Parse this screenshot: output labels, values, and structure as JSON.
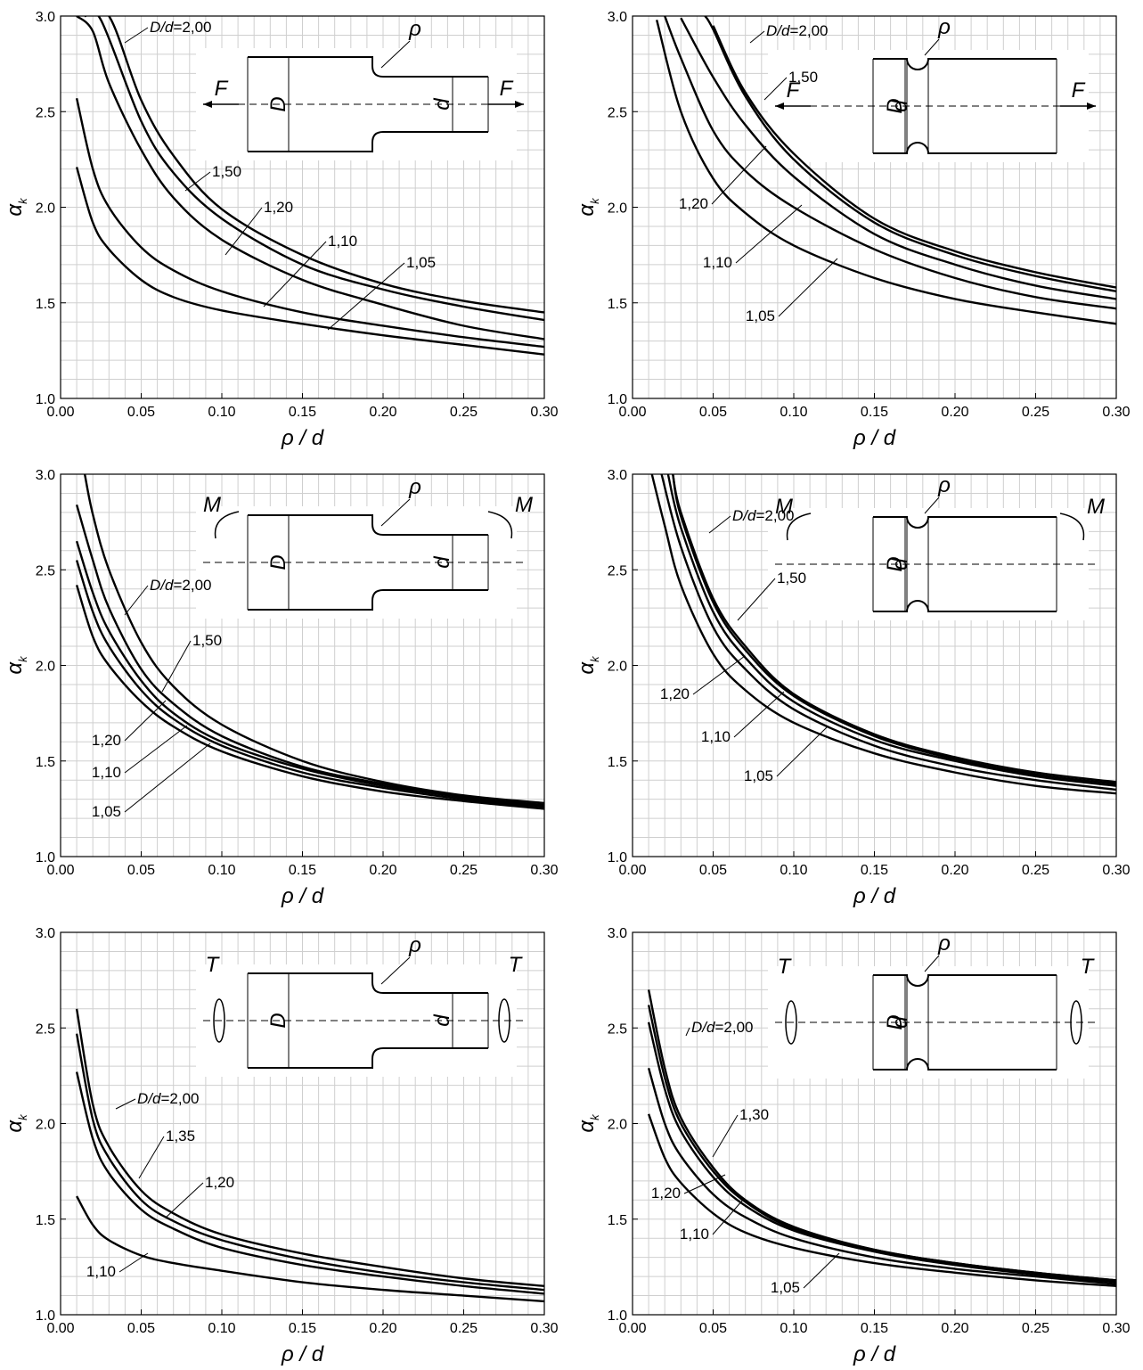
{
  "chart_data": [
    {
      "type": "line",
      "loading": "tension",
      "geometry": "shoulder-fillet",
      "xlabel": "ρ / d",
      "ylabel": "α",
      "ylabel_subscript": "k",
      "xlim": [
        0,
        0.3
      ],
      "ylim": [
        1.0,
        3.0
      ],
      "xticks": [
        "0.00",
        "0.05",
        "0.10",
        "0.15",
        "0.20",
        "0.25",
        "0.30"
      ],
      "yticks": [
        "1.0",
        "1.5",
        "2.0",
        "2.5",
        "3.0"
      ],
      "grid": true,
      "sketch_labels": {
        "force": "F",
        "big_d": "D",
        "small_d": "d",
        "radius": "ρ"
      },
      "series": [
        {
          "name": "D/d=2,00",
          "x": [
            0.015,
            0.03,
            0.05,
            0.07,
            0.1,
            0.15,
            0.2,
            0.25,
            0.3
          ],
          "values": [
            3.0,
            3.0,
            2.56,
            2.27,
            1.99,
            1.75,
            1.6,
            1.51,
            1.45
          ]
        },
        {
          "name": "1,50",
          "x": [
            0.015,
            0.025,
            0.05,
            0.07,
            0.1,
            0.15,
            0.2,
            0.25,
            0.3
          ],
          "values": [
            3.0,
            2.98,
            2.45,
            2.18,
            1.94,
            1.7,
            1.57,
            1.48,
            1.41
          ]
        },
        {
          "name": "1,20",
          "x": [
            0.01,
            0.02,
            0.03,
            0.05,
            0.07,
            0.1,
            0.15,
            0.2,
            0.25,
            0.3
          ],
          "values": [
            3.0,
            2.92,
            2.65,
            2.3,
            2.05,
            1.83,
            1.62,
            1.49,
            1.38,
            1.31
          ]
        },
        {
          "name": "1,10",
          "x": [
            0.01,
            0.02,
            0.03,
            0.05,
            0.07,
            0.1,
            0.15,
            0.2,
            0.25,
            0.3
          ],
          "values": [
            2.57,
            2.2,
            2.0,
            1.79,
            1.67,
            1.56,
            1.45,
            1.38,
            1.32,
            1.27
          ]
        },
        {
          "name": "1,05",
          "x": [
            0.01,
            0.02,
            0.03,
            0.05,
            0.07,
            0.1,
            0.15,
            0.2,
            0.25,
            0.3
          ],
          "values": [
            2.21,
            1.92,
            1.78,
            1.62,
            1.53,
            1.46,
            1.39,
            1.33,
            1.28,
            1.23
          ]
        }
      ]
    },
    {
      "type": "line",
      "loading": "tension",
      "geometry": "groove",
      "xlabel": "ρ / d",
      "ylabel": "α",
      "ylabel_subscript": "k",
      "xlim": [
        0,
        0.3
      ],
      "ylim": [
        1.0,
        3.0
      ],
      "xticks": [
        "0.00",
        "0.05",
        "0.10",
        "0.15",
        "0.20",
        "0.25",
        "0.30"
      ],
      "yticks": [
        "1.0",
        "1.5",
        "2.0",
        "2.5",
        "3.0"
      ],
      "grid": true,
      "sketch_labels": {
        "force": "F",
        "big_d": "D",
        "small_d": "d",
        "radius": "ρ"
      },
      "series": [
        {
          "name": "D/d=2,00",
          "x": [
            0.05,
            0.07,
            0.1,
            0.15,
            0.2,
            0.25,
            0.3
          ],
          "values": [
            2.95,
            2.6,
            2.28,
            1.94,
            1.77,
            1.66,
            1.58
          ]
        },
        {
          "name": "1,50",
          "x": [
            0.045,
            0.05,
            0.07,
            0.1,
            0.15,
            0.2,
            0.25,
            0.3
          ],
          "values": [
            3.0,
            2.93,
            2.58,
            2.25,
            1.92,
            1.75,
            1.64,
            1.56
          ]
        },
        {
          "name": "1,20",
          "x": [
            0.03,
            0.05,
            0.07,
            0.1,
            0.15,
            0.2,
            0.25,
            0.3
          ],
          "values": [
            2.99,
            2.68,
            2.43,
            2.16,
            1.86,
            1.7,
            1.59,
            1.52
          ]
        },
        {
          "name": "1,10",
          "x": [
            0.02,
            0.03,
            0.05,
            0.07,
            0.1,
            0.15,
            0.2,
            0.25,
            0.3
          ],
          "values": [
            3.0,
            2.78,
            2.4,
            2.19,
            2.0,
            1.78,
            1.63,
            1.53,
            1.47
          ]
        },
        {
          "name": "1,05",
          "x": [
            0.015,
            0.03,
            0.05,
            0.07,
            0.1,
            0.15,
            0.2,
            0.25,
            0.3
          ],
          "values": [
            2.98,
            2.5,
            2.15,
            1.97,
            1.8,
            1.63,
            1.52,
            1.45,
            1.39
          ]
        }
      ]
    },
    {
      "type": "line",
      "loading": "bending",
      "geometry": "shoulder-fillet",
      "xlabel": "ρ / d",
      "ylabel": "α",
      "ylabel_subscript": "k",
      "xlim": [
        0,
        0.3
      ],
      "ylim": [
        1.0,
        3.0
      ],
      "xticks": [
        "0.00",
        "0.05",
        "0.10",
        "0.15",
        "0.20",
        "0.25",
        "0.30"
      ],
      "yticks": [
        "1.0",
        "1.5",
        "2.0",
        "2.5",
        "3.0"
      ],
      "grid": true,
      "sketch_labels": {
        "force": "M",
        "big_d": "D",
        "small_d": "d",
        "radius": "ρ"
      },
      "series": [
        {
          "name": "D/d=2,00",
          "x": [
            0.015,
            0.02,
            0.03,
            0.05,
            0.07,
            0.1,
            0.15,
            0.2,
            0.25,
            0.3
          ],
          "values": [
            3.0,
            2.79,
            2.5,
            2.12,
            1.89,
            1.69,
            1.5,
            1.39,
            1.32,
            1.28
          ]
        },
        {
          "name": "1,50",
          "x": [
            0.01,
            0.02,
            0.03,
            0.05,
            0.07,
            0.1,
            0.15,
            0.2,
            0.25,
            0.3
          ],
          "values": [
            2.84,
            2.55,
            2.3,
            1.98,
            1.8,
            1.63,
            1.47,
            1.38,
            1.31,
            1.27
          ]
        },
        {
          "name": "1,20",
          "x": [
            0.01,
            0.02,
            0.03,
            0.05,
            0.07,
            0.1,
            0.15,
            0.2,
            0.25,
            0.3
          ],
          "values": [
            2.65,
            2.38,
            2.18,
            1.92,
            1.75,
            1.6,
            1.46,
            1.37,
            1.31,
            1.26
          ]
        },
        {
          "name": "1,10",
          "x": [
            0.01,
            0.02,
            0.03,
            0.05,
            0.07,
            0.1,
            0.15,
            0.2,
            0.25,
            0.3
          ],
          "values": [
            2.55,
            2.28,
            2.1,
            1.87,
            1.72,
            1.58,
            1.44,
            1.36,
            1.3,
            1.26
          ]
        },
        {
          "name": "1,05",
          "x": [
            0.01,
            0.02,
            0.03,
            0.05,
            0.07,
            0.1,
            0.15,
            0.2,
            0.25,
            0.3
          ],
          "values": [
            2.42,
            2.15,
            2.0,
            1.81,
            1.68,
            1.55,
            1.42,
            1.34,
            1.29,
            1.25
          ]
        }
      ]
    },
    {
      "type": "line",
      "loading": "bending",
      "geometry": "groove",
      "xlabel": "ρ / d",
      "ylabel": "α",
      "ylabel_subscript": "k",
      "xlim": [
        0,
        0.3
      ],
      "ylim": [
        1.0,
        3.0
      ],
      "xticks": [
        "0.00",
        "0.05",
        "0.10",
        "0.15",
        "0.20",
        "0.25",
        "0.30"
      ],
      "yticks": [
        "1.0",
        "1.5",
        "2.0",
        "2.5",
        "3.0"
      ],
      "grid": true,
      "sketch_labels": {
        "force": "M",
        "big_d": "D",
        "small_d": "d",
        "radius": "ρ"
      },
      "series": [
        {
          "name": "D/d=2,00",
          "x": [
            0.025,
            0.03,
            0.05,
            0.07,
            0.1,
            0.15,
            0.2,
            0.25,
            0.3
          ],
          "values": [
            3.0,
            2.8,
            2.35,
            2.1,
            1.85,
            1.64,
            1.52,
            1.44,
            1.39
          ]
        },
        {
          "name": "1,50",
          "x": [
            0.025,
            0.03,
            0.05,
            0.07,
            0.1,
            0.15,
            0.2,
            0.25,
            0.3
          ],
          "values": [
            3.0,
            2.78,
            2.33,
            2.08,
            1.84,
            1.63,
            1.51,
            1.43,
            1.38
          ]
        },
        {
          "name": "1,20",
          "x": [
            0.022,
            0.03,
            0.05,
            0.07,
            0.1,
            0.15,
            0.2,
            0.25,
            0.3
          ],
          "values": [
            3.0,
            2.72,
            2.28,
            2.04,
            1.81,
            1.61,
            1.5,
            1.42,
            1.37
          ]
        },
        {
          "name": "1,10",
          "x": [
            0.018,
            0.03,
            0.05,
            0.07,
            0.1,
            0.15,
            0.2,
            0.25,
            0.3
          ],
          "values": [
            3.0,
            2.62,
            2.2,
            1.98,
            1.77,
            1.58,
            1.47,
            1.4,
            1.35
          ]
        },
        {
          "name": "1,05",
          "x": [
            0.012,
            0.02,
            0.03,
            0.05,
            0.07,
            0.1,
            0.15,
            0.2,
            0.25,
            0.3
          ],
          "values": [
            3.0,
            2.73,
            2.42,
            2.06,
            1.87,
            1.7,
            1.54,
            1.44,
            1.37,
            1.33
          ]
        }
      ]
    },
    {
      "type": "line",
      "loading": "torsion",
      "geometry": "shoulder-fillet",
      "xlabel": "ρ / d",
      "ylabel": "α",
      "ylabel_subscript": "k",
      "xlim": [
        0,
        0.3
      ],
      "ylim": [
        1.0,
        3.0
      ],
      "xticks": [
        "0.00",
        "0.05",
        "0.10",
        "0.15",
        "0.20",
        "0.25",
        "0.30"
      ],
      "yticks": [
        "1.0",
        "1.5",
        "2.0",
        "2.5",
        "3.0"
      ],
      "grid": true,
      "sketch_labels": {
        "force": "T",
        "big_d": "D",
        "small_d": "d",
        "radius": "ρ"
      },
      "series": [
        {
          "name": "D/d=2,00",
          "x": [
            0.01,
            0.02,
            0.03,
            0.05,
            0.07,
            0.1,
            0.15,
            0.2,
            0.25,
            0.3
          ],
          "values": [
            2.6,
            2.1,
            1.88,
            1.65,
            1.53,
            1.42,
            1.32,
            1.25,
            1.19,
            1.15
          ]
        },
        {
          "name": "1,35",
          "x": [
            0.01,
            0.02,
            0.03,
            0.05,
            0.07,
            0.1,
            0.15,
            0.2,
            0.25,
            0.3
          ],
          "values": [
            2.47,
            2.02,
            1.82,
            1.6,
            1.49,
            1.39,
            1.29,
            1.22,
            1.17,
            1.13
          ]
        },
        {
          "name": "1,20",
          "x": [
            0.01,
            0.02,
            0.03,
            0.05,
            0.07,
            0.1,
            0.15,
            0.2,
            0.25,
            0.3
          ],
          "values": [
            2.27,
            1.92,
            1.74,
            1.55,
            1.45,
            1.35,
            1.26,
            1.2,
            1.15,
            1.11
          ]
        },
        {
          "name": "1,10",
          "x": [
            0.01,
            0.02,
            0.03,
            0.05,
            0.07,
            0.1,
            0.15,
            0.2,
            0.25,
            0.3
          ],
          "values": [
            1.62,
            1.47,
            1.39,
            1.31,
            1.27,
            1.23,
            1.17,
            1.13,
            1.1,
            1.07
          ]
        }
      ]
    },
    {
      "type": "line",
      "loading": "torsion",
      "geometry": "groove",
      "xlabel": "ρ / d",
      "ylabel": "α",
      "ylabel_subscript": "k",
      "xlim": [
        0,
        0.3
      ],
      "ylim": [
        1.0,
        3.0
      ],
      "xticks": [
        "0.00",
        "0.05",
        "0.10",
        "0.15",
        "0.20",
        "0.25",
        "0.30"
      ],
      "yticks": [
        "1.0",
        "1.5",
        "2.0",
        "2.5",
        "3.0"
      ],
      "grid": true,
      "sketch_labels": {
        "force": "T",
        "big_d": "D",
        "small_d": "d",
        "radius": "ρ"
      },
      "series": [
        {
          "name": "D/d=2,00",
          "x": [
            0.01,
            0.02,
            0.03,
            0.05,
            0.07,
            0.1,
            0.15,
            0.2,
            0.25,
            0.3
          ],
          "values": [
            2.7,
            2.29,
            2.03,
            1.77,
            1.6,
            1.46,
            1.34,
            1.27,
            1.22,
            1.18
          ]
        },
        {
          "name": "1,30",
          "x": [
            0.01,
            0.02,
            0.03,
            0.05,
            0.07,
            0.1,
            0.15,
            0.2,
            0.25,
            0.3
          ],
          "values": [
            2.62,
            2.24,
            2.0,
            1.75,
            1.59,
            1.45,
            1.34,
            1.27,
            1.22,
            1.18
          ]
        },
        {
          "name": "1,20",
          "x": [
            0.01,
            0.02,
            0.03,
            0.05,
            0.07,
            0.1,
            0.15,
            0.2,
            0.25,
            0.3
          ],
          "values": [
            2.53,
            2.18,
            1.96,
            1.72,
            1.57,
            1.44,
            1.33,
            1.26,
            1.21,
            1.17
          ]
        },
        {
          "name": "1,10",
          "x": [
            0.01,
            0.02,
            0.03,
            0.05,
            0.07,
            0.1,
            0.15,
            0.2,
            0.25,
            0.3
          ],
          "values": [
            2.29,
            2.0,
            1.83,
            1.63,
            1.51,
            1.4,
            1.3,
            1.24,
            1.2,
            1.16
          ]
        },
        {
          "name": "1,05",
          "x": [
            0.01,
            0.02,
            0.03,
            0.05,
            0.07,
            0.1,
            0.15,
            0.2,
            0.25,
            0.3
          ],
          "values": [
            2.05,
            1.82,
            1.69,
            1.53,
            1.43,
            1.35,
            1.27,
            1.22,
            1.18,
            1.15
          ]
        }
      ]
    }
  ]
}
